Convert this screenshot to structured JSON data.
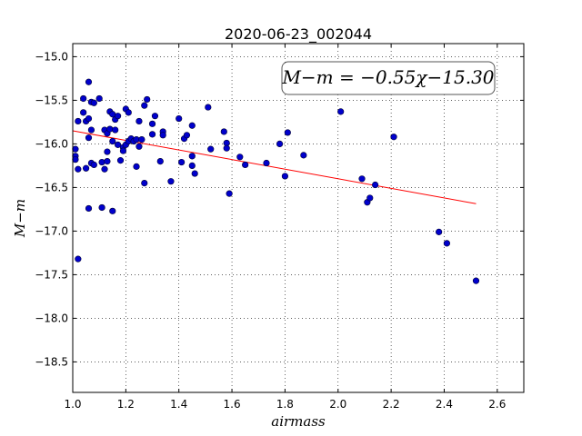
{
  "chart_data": {
    "type": "scatter",
    "title": "2020-06-23_002044",
    "xlabel": "airmass",
    "ylabel": "M−m",
    "xlim": [
      1.0,
      2.7
    ],
    "ylim": [
      -18.85,
      -14.85
    ],
    "xticks": [
      1.0,
      1.2,
      1.4,
      1.6,
      1.8,
      2.0,
      2.2,
      2.4,
      2.6
    ],
    "xtick_labels": [
      "1.0",
      "1.2",
      "1.4",
      "1.6",
      "1.8",
      "2.0",
      "2.2",
      "2.4",
      "2.6"
    ],
    "yticks": [
      -15.0,
      -15.5,
      -16.0,
      -16.5,
      -17.0,
      -17.5,
      -18.0,
      -18.5
    ],
    "ytick_labels": [
      "−15.0",
      "−15.5",
      "−16.0",
      "−16.5",
      "−17.0",
      "−17.5",
      "−18.0",
      "−18.5"
    ],
    "grid": true,
    "annotation": "M−m = −0.55χ−15.30",
    "annotation_position": "top-right",
    "fit": {
      "slope": -0.55,
      "intercept": -15.3,
      "x_range": [
        1.0,
        2.52
      ],
      "color": "#ff0000"
    },
    "point_color": "#0000cc",
    "points": [
      [
        1.01,
        -16.06
      ],
      [
        1.01,
        -16.14
      ],
      [
        1.01,
        -16.18
      ],
      [
        1.02,
        -15.74
      ],
      [
        1.02,
        -16.29
      ],
      [
        1.02,
        -17.32
      ],
      [
        1.04,
        -15.48
      ],
      [
        1.04,
        -15.64
      ],
      [
        1.05,
        -15.74
      ],
      [
        1.05,
        -16.28
      ],
      [
        1.06,
        -15.29
      ],
      [
        1.06,
        -15.71
      ],
      [
        1.06,
        -15.93
      ],
      [
        1.06,
        -16.74
      ],
      [
        1.07,
        -15.52
      ],
      [
        1.07,
        -15.84
      ],
      [
        1.07,
        -16.22
      ],
      [
        1.08,
        -15.53
      ],
      [
        1.08,
        -16.24
      ],
      [
        1.1,
        -15.48
      ],
      [
        1.11,
        -16.21
      ],
      [
        1.11,
        -16.73
      ],
      [
        1.12,
        -15.84
      ],
      [
        1.12,
        -16.29
      ],
      [
        1.13,
        -15.88
      ],
      [
        1.13,
        -16.09
      ],
      [
        1.13,
        -16.2
      ],
      [
        1.14,
        -15.63
      ],
      [
        1.14,
        -15.83
      ],
      [
        1.15,
        -15.66
      ],
      [
        1.15,
        -15.97
      ],
      [
        1.15,
        -16.77
      ],
      [
        1.16,
        -15.72
      ],
      [
        1.16,
        -15.84
      ],
      [
        1.17,
        -15.68
      ],
      [
        1.17,
        -16.01
      ],
      [
        1.18,
        -16.19
      ],
      [
        1.19,
        -16.04
      ],
      [
        1.19,
        -16.08
      ],
      [
        1.2,
        -15.6
      ],
      [
        1.2,
        -16.01
      ],
      [
        1.21,
        -15.64
      ],
      [
        1.21,
        -15.97
      ],
      [
        1.22,
        -15.94
      ],
      [
        1.23,
        -15.97
      ],
      [
        1.24,
        -15.95
      ],
      [
        1.24,
        -16.26
      ],
      [
        1.25,
        -15.74
      ],
      [
        1.25,
        -16.03
      ],
      [
        1.26,
        -15.95
      ],
      [
        1.27,
        -15.56
      ],
      [
        1.27,
        -16.45
      ],
      [
        1.28,
        -15.49
      ],
      [
        1.3,
        -15.77
      ],
      [
        1.3,
        -15.89
      ],
      [
        1.31,
        -15.68
      ],
      [
        1.33,
        -16.2
      ],
      [
        1.34,
        -15.86
      ],
      [
        1.34,
        -15.9
      ],
      [
        1.37,
        -16.43
      ],
      [
        1.4,
        -15.71
      ],
      [
        1.41,
        -16.21
      ],
      [
        1.42,
        -15.94
      ],
      [
        1.43,
        -15.9
      ],
      [
        1.45,
        -15.79
      ],
      [
        1.45,
        -16.14
      ],
      [
        1.45,
        -16.25
      ],
      [
        1.46,
        -16.34
      ],
      [
        1.51,
        -15.58
      ],
      [
        1.52,
        -16.06
      ],
      [
        1.57,
        -15.86
      ],
      [
        1.58,
        -15.99
      ],
      [
        1.58,
        -16.05
      ],
      [
        1.59,
        -16.57
      ],
      [
        1.63,
        -16.15
      ],
      [
        1.65,
        -16.24
      ],
      [
        1.73,
        -16.22
      ],
      [
        1.78,
        -16.0
      ],
      [
        1.8,
        -16.37
      ],
      [
        1.81,
        -15.87
      ],
      [
        1.87,
        -16.13
      ],
      [
        2.01,
        -15.63
      ],
      [
        2.09,
        -16.4
      ],
      [
        2.11,
        -16.67
      ],
      [
        2.12,
        -16.62
      ],
      [
        2.14,
        -16.47
      ],
      [
        2.21,
        -15.92
      ],
      [
        2.38,
        -17.01
      ],
      [
        2.41,
        -17.14
      ],
      [
        2.52,
        -17.57
      ]
    ]
  }
}
